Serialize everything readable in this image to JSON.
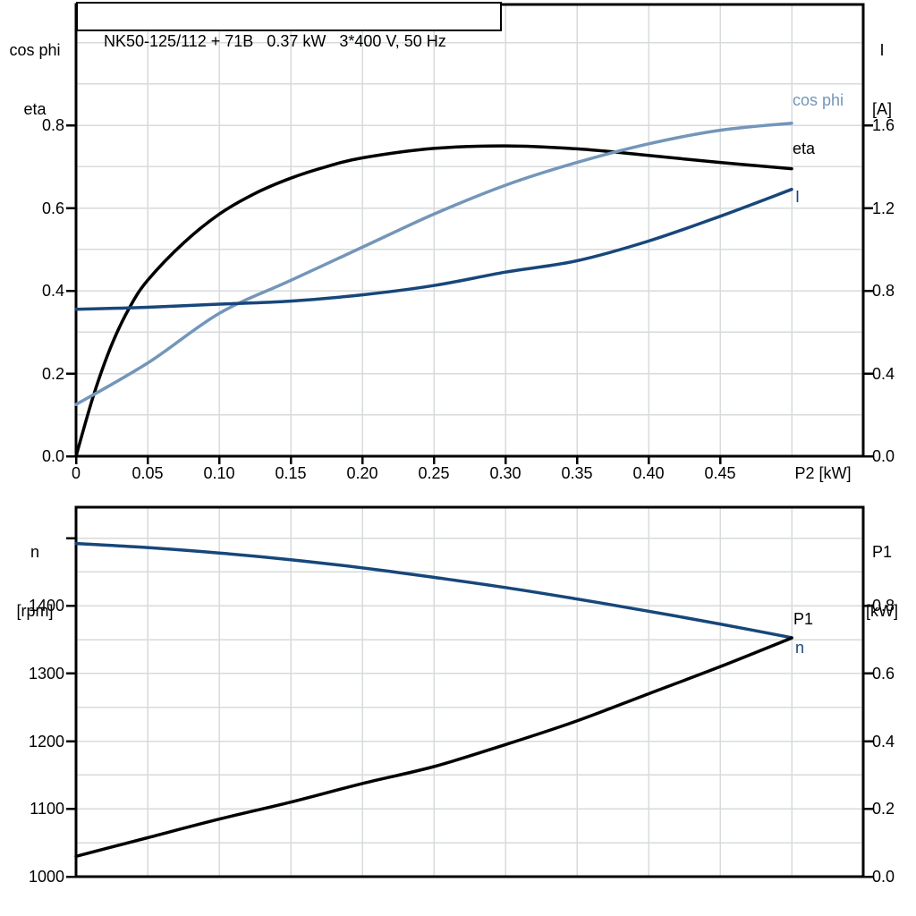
{
  "title_box": {
    "text": "NK50-125/112 + 71B   0.37 kW   3*400 V, 50 Hz"
  },
  "colors": {
    "cos_phi": "#7396B9",
    "current_blue": "#17477A",
    "curve_black": "#000000",
    "grid": "#D7DBDB",
    "frame": "#000000",
    "text": "#000000",
    "background": "#FFFFFF"
  },
  "top_chart": {
    "left_axis": {
      "title_line1": "cos phi",
      "title_line2": "eta",
      "ticks": [
        "0.8",
        "0.6",
        "0.4",
        "0.2",
        "0.0"
      ]
    },
    "right_axis": {
      "title_line1": "I",
      "title_line2": "[A]",
      "ticks": [
        "1.6",
        "1.2",
        "0.8",
        "0.4",
        "0.0"
      ]
    },
    "x_axis": {
      "ticks": [
        "0",
        "0.05",
        "0.10",
        "0.15",
        "0.20",
        "0.25",
        "0.30",
        "0.35",
        "0.40",
        "0.45"
      ],
      "label": "P2 [kW]"
    },
    "curve_labels": {
      "cos_phi": "cos phi",
      "eta": "eta",
      "current": "I"
    }
  },
  "bottom_chart": {
    "left_axis": {
      "title_line1": "n",
      "title_line2": "[rpm]",
      "ticks": [
        "1400",
        "1300",
        "1200",
        "1100",
        "1000"
      ]
    },
    "right_axis": {
      "title_line1": "P1",
      "title_line2": "[kW]",
      "ticks": [
        "0.8",
        "0.6",
        "0.4",
        "0.2",
        "0.0"
      ]
    },
    "curve_labels": {
      "p1": "P1",
      "n": "n"
    }
  },
  "chart_data": [
    {
      "type": "line",
      "title": "NK50-125/112 + 71B 0.37 kW 3*400 V, 50 Hz",
      "xlabel": "P2 [kW]",
      "x_range": [
        0,
        0.55
      ],
      "left_axis_label": "cos phi / eta",
      "left_ylim": [
        0,
        1.09
      ],
      "right_axis_label": "I [A]",
      "right_ylim": [
        0,
        2.18
      ],
      "grid": "on",
      "x_grid": [
        0.05,
        0.1,
        0.15,
        0.2,
        0.25,
        0.3,
        0.35,
        0.4,
        0.45,
        0.5
      ],
      "y_grid_left": [
        0.1,
        0.2,
        0.3,
        0.4,
        0.5,
        0.6,
        0.7,
        0.8,
        0.9,
        1.0
      ],
      "left_tick_values": [
        0.8,
        0.6,
        0.4,
        0.2,
        0.0
      ],
      "right_tick_values": [
        1.6,
        1.2,
        0.8,
        0.4,
        0.0
      ],
      "x_tick_values": [
        0,
        0.05,
        0.1,
        0.15,
        0.2,
        0.25,
        0.3,
        0.35,
        0.4,
        0.45
      ],
      "series": [
        {
          "name": "eta",
          "axis": "left",
          "color_key": "curve_black",
          "x": [
            0,
            0.0125,
            0.025,
            0.0375,
            0.05,
            0.075,
            0.1,
            0.125,
            0.15,
            0.175,
            0.2,
            0.25,
            0.3,
            0.35,
            0.4,
            0.45,
            0.5
          ],
          "values": [
            0,
            0.15,
            0.27,
            0.36,
            0.425,
            0.515,
            0.585,
            0.635,
            0.672,
            0.7,
            0.721,
            0.744,
            0.75,
            0.743,
            0.727,
            0.71,
            0.695
          ]
        },
        {
          "name": "cos phi",
          "axis": "left",
          "color_key": "cos_phi",
          "x": [
            0,
            0.05,
            0.1,
            0.15,
            0.2,
            0.25,
            0.3,
            0.35,
            0.4,
            0.45,
            0.5
          ],
          "values": [
            0.125,
            0.225,
            0.345,
            0.425,
            0.505,
            0.585,
            0.655,
            0.71,
            0.755,
            0.788,
            0.805
          ]
        },
        {
          "name": "I",
          "axis": "right",
          "unit": "A",
          "color_key": "current_blue",
          "x": [
            0,
            0.05,
            0.1,
            0.15,
            0.2,
            0.25,
            0.3,
            0.35,
            0.4,
            0.45,
            0.5
          ],
          "values": [
            0.71,
            0.72,
            0.735,
            0.75,
            0.78,
            0.825,
            0.89,
            0.945,
            1.04,
            1.16,
            1.29
          ]
        }
      ]
    },
    {
      "type": "line",
      "xlabel": "P2 [kW]",
      "x_range": [
        0,
        0.55
      ],
      "left_axis_label": "n [rpm]",
      "left_ylim": [
        1000,
        1546
      ],
      "right_axis_label": "P1 [kW]",
      "right_ylim": [
        0,
        1.09
      ],
      "grid": "on",
      "x_grid": [
        0.05,
        0.1,
        0.15,
        0.2,
        0.25,
        0.3,
        0.35,
        0.4,
        0.45,
        0.5
      ],
      "y_grid_rpm": [
        1050,
        1100,
        1150,
        1200,
        1250,
        1300,
        1350,
        1400,
        1450,
        1500
      ],
      "left_tick_values": [
        1400,
        1300,
        1200,
        1100,
        1000
      ],
      "left_unlabeled_ticks": [
        1500
      ],
      "right_tick_values": [
        0.8,
        0.6,
        0.4,
        0.2,
        0.0
      ],
      "series": [
        {
          "name": "n",
          "axis": "rpm",
          "unit": "rpm",
          "color_key": "current_blue",
          "x": [
            0,
            0.05,
            0.1,
            0.15,
            0.2,
            0.25,
            0.3,
            0.35,
            0.4,
            0.45,
            0.5
          ],
          "values": [
            1492,
            1486,
            1478,
            1468,
            1456,
            1442,
            1427,
            1410,
            1392,
            1373,
            1353
          ]
        },
        {
          "name": "P1",
          "axis": "kw",
          "unit": "kW",
          "color_key": "curve_black",
          "x": [
            0,
            0.05,
            0.1,
            0.15,
            0.2,
            0.25,
            0.3,
            0.35,
            0.4,
            0.45,
            0.5
          ],
          "values": [
            0.06,
            0.115,
            0.17,
            0.22,
            0.275,
            0.325,
            0.39,
            0.46,
            0.54,
            0.62,
            0.705
          ]
        }
      ]
    }
  ]
}
